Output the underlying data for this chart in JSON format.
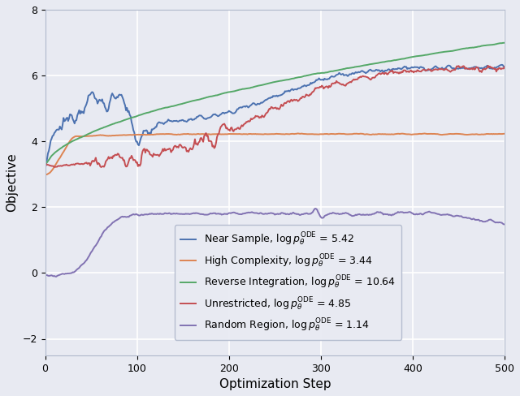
{
  "title": "",
  "xlabel": "Optimization Step",
  "ylabel": "Objective",
  "xlim": [
    0,
    500
  ],
  "ylim": [
    -2.5,
    8
  ],
  "yticks": [
    -2,
    0,
    2,
    4,
    6,
    8
  ],
  "xticks": [
    0,
    100,
    200,
    300,
    400,
    500
  ],
  "background_color": "#e8eaf2",
  "grid_color": "white",
  "series": [
    {
      "name": "Near Sample, $\\log p_{\\theta}^{\\mathrm{ODE}}$ = 5.42",
      "color": "#4c72b0",
      "final_val": 5.42
    },
    {
      "name": "High Complexity, $\\log p_{\\theta}^{\\mathrm{ODE}}$ = 3.44",
      "color": "#dd8452",
      "final_val": 3.44
    },
    {
      "name": "Reverse Integration, $\\log p_{\\theta}^{\\mathrm{ODE}}$ = 10.64",
      "color": "#55a868",
      "final_val": 10.64
    },
    {
      "name": "Unrestricted, $\\log p_{\\theta}^{\\mathrm{ODE}}$ = 4.85",
      "color": "#c44e52",
      "final_val": 4.85
    },
    {
      "name": "Random Region, $\\log p_{\\theta}^{\\mathrm{ODE}}$ = 1.14",
      "color": "#8172b2",
      "final_val": 1.14
    }
  ],
  "legend_fontsize": 9,
  "axis_fontsize": 11
}
